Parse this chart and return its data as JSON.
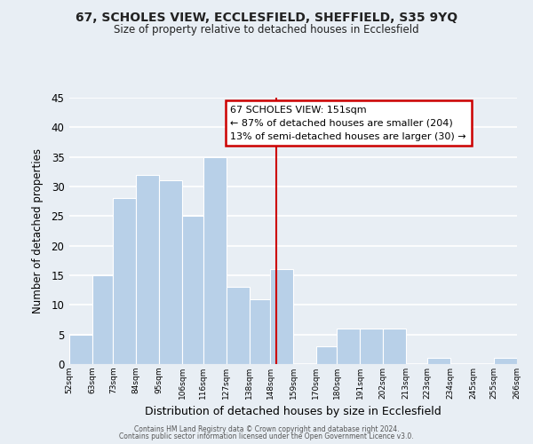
{
  "title": "67, SCHOLES VIEW, ECCLESFIELD, SHEFFIELD, S35 9YQ",
  "subtitle": "Size of property relative to detached houses in Ecclesfield",
  "xlabel": "Distribution of detached houses by size in Ecclesfield",
  "ylabel": "Number of detached properties",
  "bar_color": "#b8d0e8",
  "bar_edge_color": "#d0e0f0",
  "bins": [
    52,
    63,
    73,
    84,
    95,
    106,
    116,
    127,
    138,
    148,
    159,
    170,
    180,
    191,
    202,
    213,
    223,
    234,
    245,
    255,
    266
  ],
  "bin_labels": [
    "52sqm",
    "63sqm",
    "73sqm",
    "84sqm",
    "95sqm",
    "106sqm",
    "116sqm",
    "127sqm",
    "138sqm",
    "148sqm",
    "159sqm",
    "170sqm",
    "180sqm",
    "191sqm",
    "202sqm",
    "213sqm",
    "223sqm",
    "234sqm",
    "245sqm",
    "255sqm",
    "266sqm"
  ],
  "values": [
    5,
    15,
    28,
    32,
    31,
    25,
    35,
    13,
    11,
    16,
    0,
    3,
    6,
    6,
    6,
    0,
    1,
    0,
    0,
    1
  ],
  "ylim": [
    0,
    45
  ],
  "yticks": [
    0,
    5,
    10,
    15,
    20,
    25,
    30,
    35,
    40,
    45
  ],
  "property_line_x": 151,
  "annotation_title": "67 SCHOLES VIEW: 151sqm",
  "annotation_line1": "← 87% of detached houses are smaller (204)",
  "annotation_line2": "13% of semi-detached houses are larger (30) →",
  "annotation_box_color": "#ffffff",
  "annotation_border_color": "#cc0000",
  "line_color": "#cc0000",
  "footer1": "Contains HM Land Registry data © Crown copyright and database right 2024.",
  "footer2": "Contains public sector information licensed under the Open Government Licence v3.0.",
  "background_color": "#e8eef4",
  "grid_color": "#ffffff"
}
